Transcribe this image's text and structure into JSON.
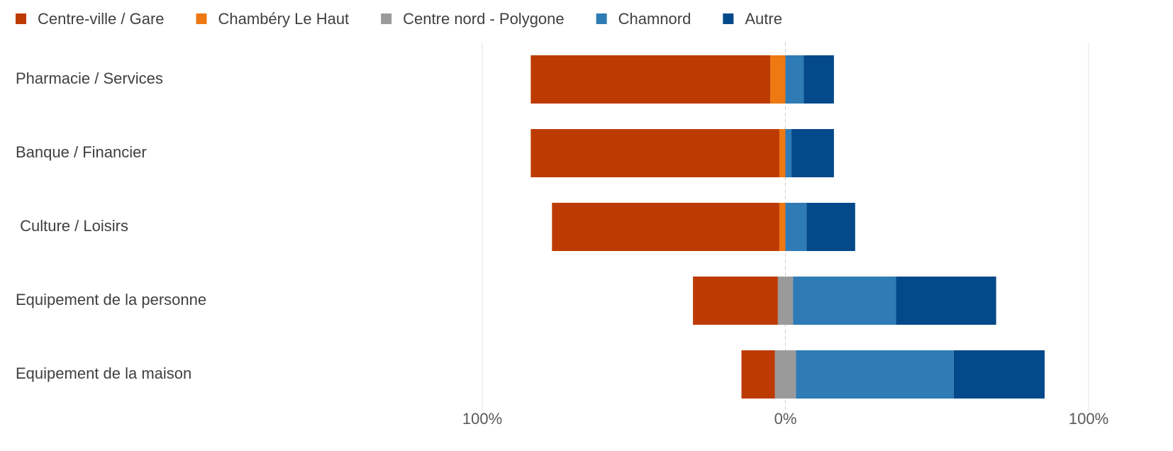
{
  "chart_data": {
    "type": "diverging_bar",
    "categories": [
      "Pharmacie / Services",
      "Banque / Financier",
      " Culture / Loisirs",
      "Equipement de la personne",
      "Equipement de la maison"
    ],
    "series": [
      {
        "name": "Centre-ville / Gare",
        "color": "#bd3b02",
        "side": "negative",
        "values": [
          79,
          82,
          75,
          28,
          11
        ]
      },
      {
        "name": "Chambéry Le Haut",
        "color": "#ee7812",
        "side": "negative",
        "values": [
          5,
          2,
          2,
          0,
          0
        ]
      },
      {
        "name": "Centre nord - Polygone",
        "color": "#9a9a9a",
        "side": "neutral",
        "values": [
          0,
          0,
          0,
          5,
          7
        ]
      },
      {
        "name": "Chamnord",
        "color": "#2e7bb5",
        "side": "positive",
        "values": [
          6,
          2,
          7,
          34,
          52
        ]
      },
      {
        "name": "Autre",
        "color": "#04498a",
        "side": "positive",
        "values": [
          10,
          14,
          16,
          33,
          30
        ]
      }
    ],
    "xlim": [
      -100,
      100
    ],
    "xticks": [
      {
        "value": -100,
        "label": "100%"
      },
      {
        "value": 0,
        "label": "0%"
      },
      {
        "value": 100,
        "label": "100%"
      }
    ],
    "grid": true,
    "legend": "top"
  }
}
